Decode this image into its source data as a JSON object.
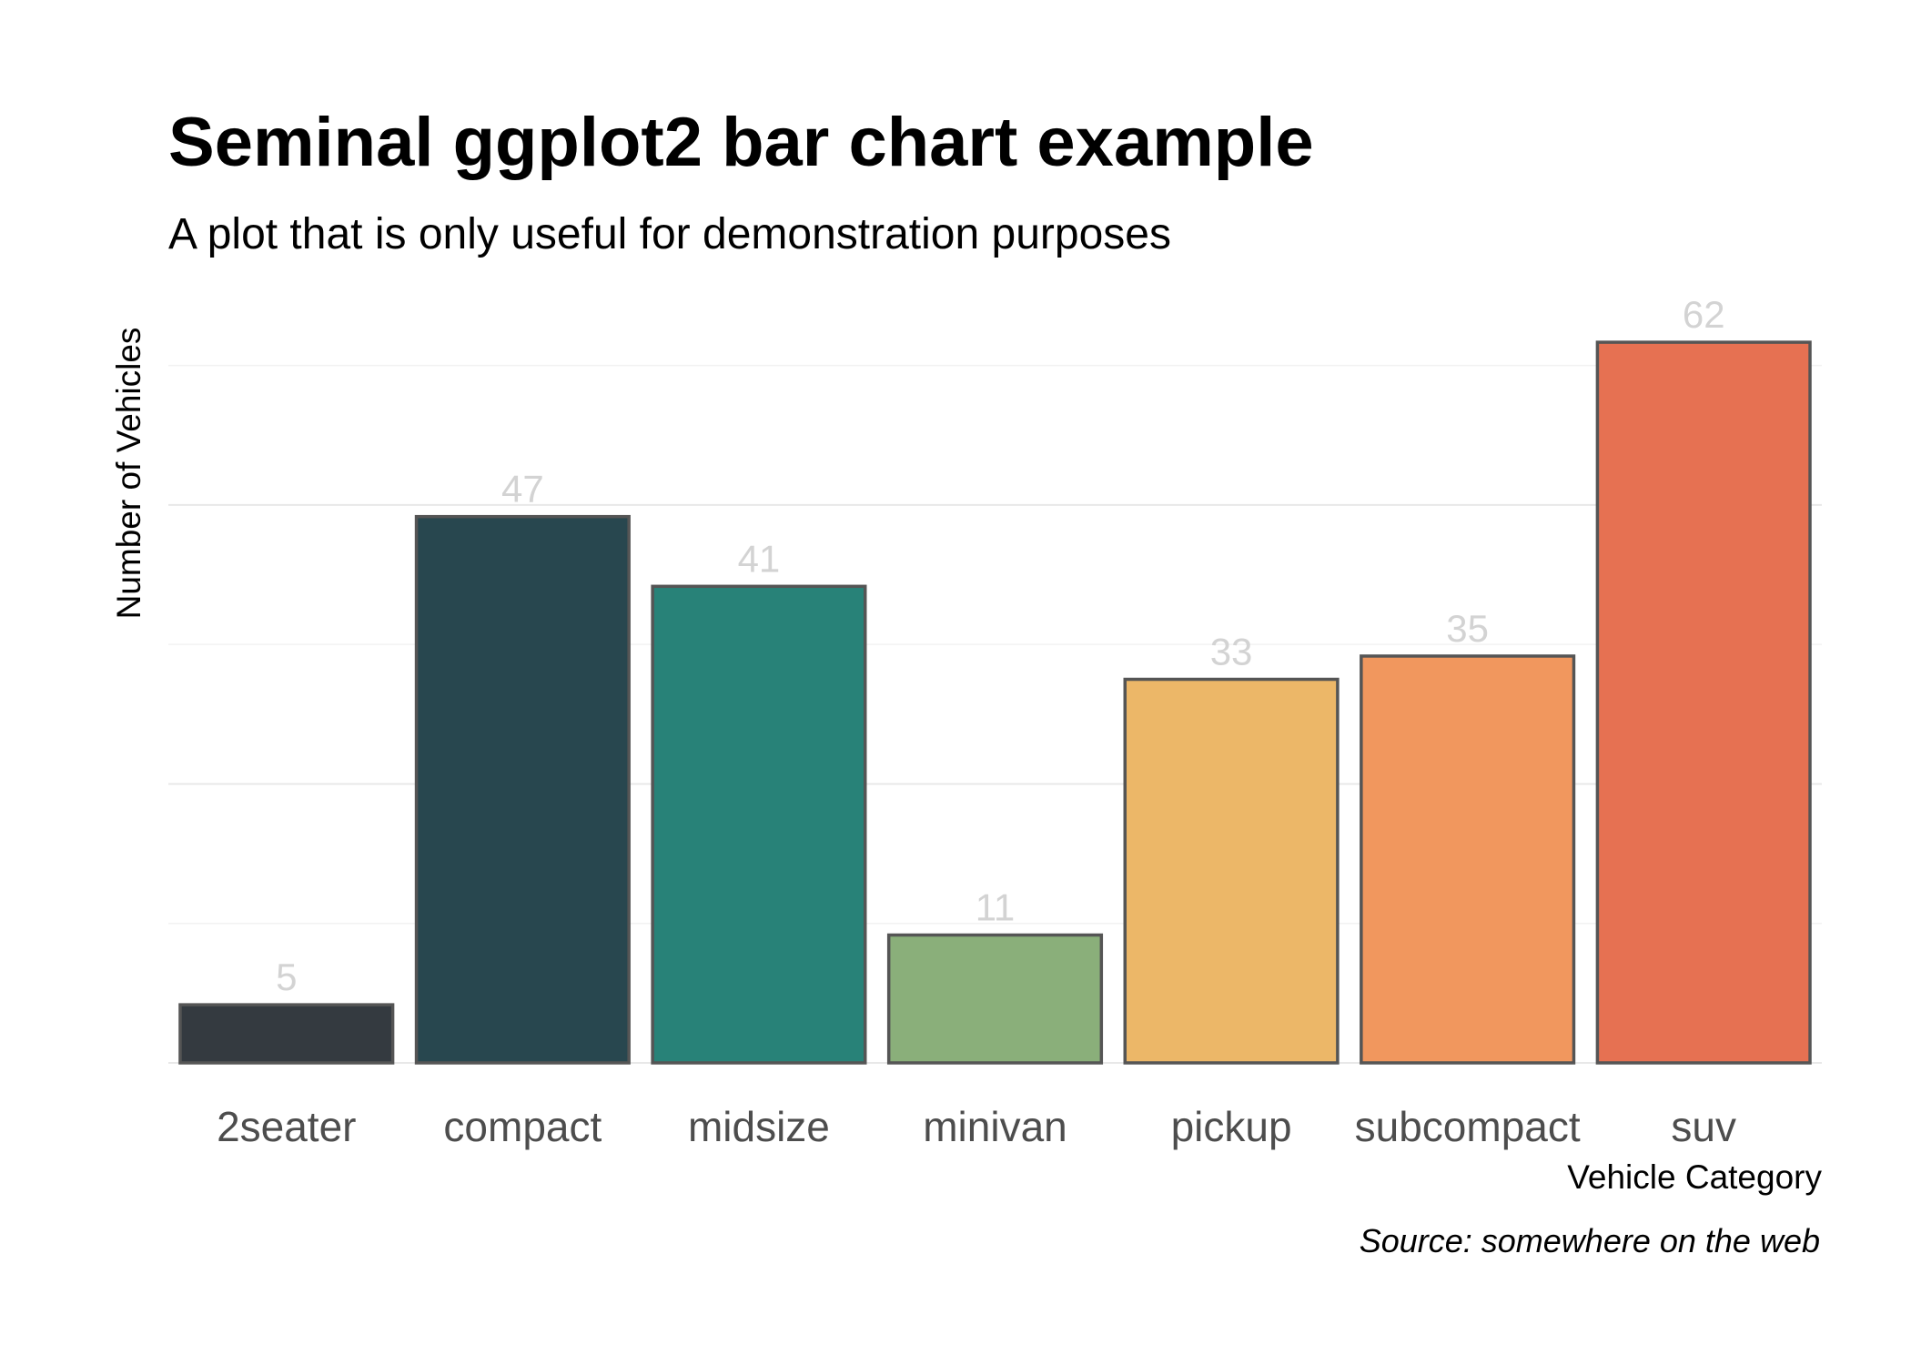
{
  "chart_data": {
    "type": "bar",
    "title": "Seminal ggplot2 bar chart example",
    "subtitle": "A plot that is only useful for demonstration purposes",
    "caption": "Source: somewhere on the web",
    "xlabel": "Vehicle Category",
    "ylabel": "Number of Vehicles",
    "categories": [
      "2seater",
      "compact",
      "midsize",
      "minivan",
      "pickup",
      "subcompact",
      "suv"
    ],
    "values": [
      5,
      47,
      41,
      11,
      33,
      35,
      62
    ],
    "colors": [
      "#343a40",
      "#28474f",
      "#288278",
      "#8aaf7a",
      "#ecb768",
      "#f1975e",
      "#e67152"
    ],
    "bar_outline_color": "#555555",
    "label_color": "#d3d3d3",
    "ylim": [
      0,
      66
    ],
    "grid": true,
    "y_tick_labels": false
  }
}
